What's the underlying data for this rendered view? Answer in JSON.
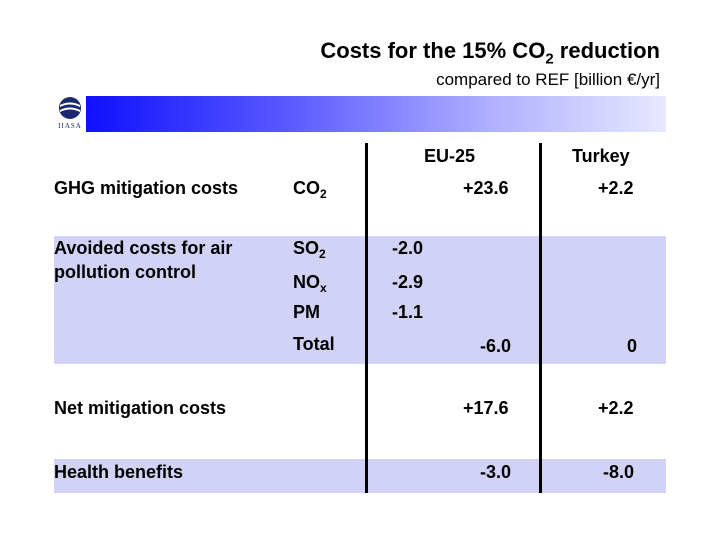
{
  "title": {
    "prefix": "Costs for the 15% CO",
    "sub": "2",
    "suffix": " reduction"
  },
  "subtitle": "compared to REF [billion €/yr]",
  "logo": {
    "text": "IIASA",
    "icon": "iiasa-logo-icon"
  },
  "columns": {
    "eu25": "EU-25",
    "turkey": "Turkey"
  },
  "rows": {
    "ghg": {
      "label": "GHG mitigation costs",
      "pollutant_main": "CO",
      "pollutant_sub": "2",
      "eu25": "+23.6",
      "turkey": "+2.2"
    },
    "avoided": {
      "label_line1": "Avoided costs for air",
      "label_line2": "pollution control",
      "so2": {
        "main": "SO",
        "sub": "2",
        "value": "-2.0"
      },
      "nox": {
        "main": "NO",
        "sub": "x",
        "value": "-2.9"
      },
      "pm": {
        "main": "PM",
        "value": "-1.1"
      },
      "total": {
        "label": "Total",
        "eu25": "-6.0",
        "turkey": "0"
      }
    },
    "net": {
      "label": "Net mitigation costs",
      "eu25": "+17.6",
      "turkey": "+2.2"
    },
    "health": {
      "label": "Health benefits",
      "eu25": "-3.0",
      "turkey": "-8.0"
    }
  }
}
